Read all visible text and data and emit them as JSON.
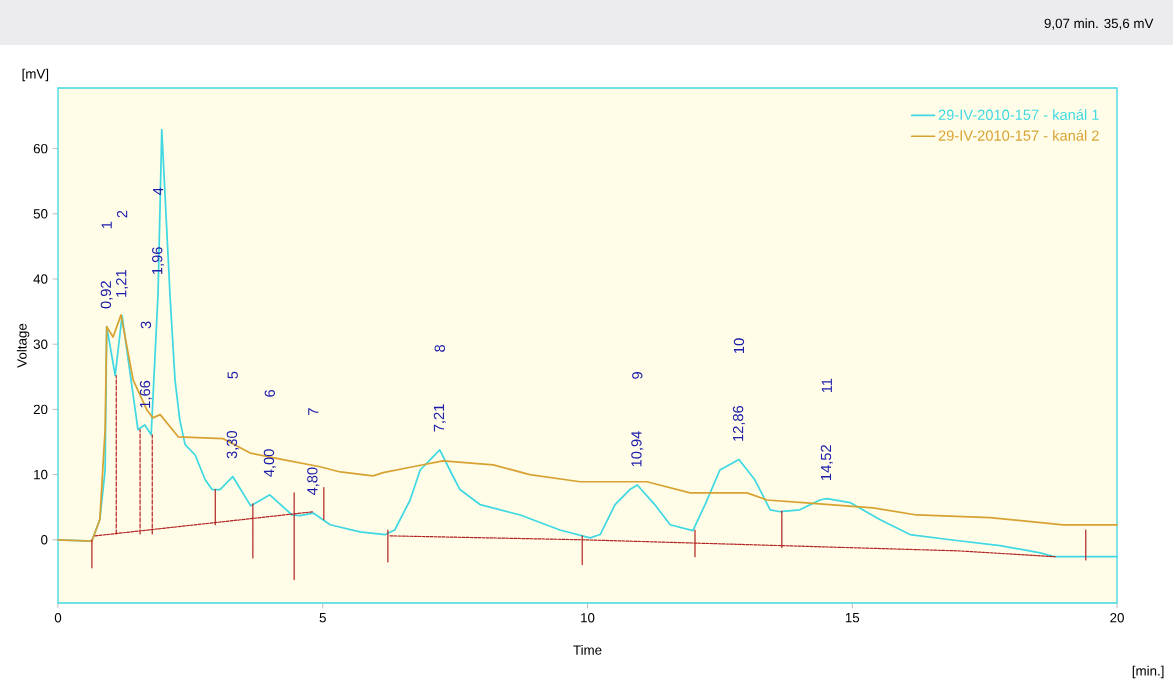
{
  "chart_data": {
    "type": "line",
    "xlabel": "Time",
    "ylabel": "Voltage",
    "xlim": [
      0,
      20
    ],
    "ylim": [
      -9.7,
      69.3
    ],
    "xticks": [
      0,
      5,
      10,
      15,
      20
    ],
    "yticks": [
      0,
      10,
      20,
      30,
      40,
      50,
      60
    ],
    "grid": false,
    "legend": "top right",
    "marker": "none",
    "series": [
      {
        "name": "29-IV-2010-157 - kanál 1",
        "color": "#3fd8e2",
        "line_style": "solid",
        "x": [
          0,
          0.64,
          0.79,
          0.89,
          0.92,
          1.08,
          1.21,
          1.51,
          1.64,
          1.76,
          1.89,
          1.96,
          2.12,
          2.21,
          2.3,
          2.4,
          2.59,
          2.78,
          2.91,
          3.06,
          3.3,
          3.64,
          4.0,
          4.42,
          4.57,
          4.82,
          5.14,
          5.7,
          6.18,
          6.36,
          6.65,
          6.84,
          7.21,
          7.4,
          7.59,
          7.97,
          8.73,
          9.48,
          10.05,
          10.24,
          10.52,
          10.8,
          10.94,
          11.27,
          11.56,
          11.99,
          12.22,
          12.5,
          12.86,
          13.16,
          13.45,
          13.64,
          14.01,
          14.39,
          14.52,
          14.96,
          15.52,
          16.09,
          16.85,
          17.79,
          18.55,
          18.83,
          20
        ],
        "values": [
          0,
          -0.2,
          3.1,
          10.7,
          32.7,
          25.2,
          34.4,
          16.9,
          17.6,
          16.1,
          37.9,
          62.9,
          36.8,
          24.5,
          18.4,
          14.6,
          13.0,
          9.2,
          7.7,
          7.7,
          9.7,
          5.2,
          6.9,
          3.8,
          3.7,
          4.1,
          2.3,
          1.2,
          0.8,
          1.5,
          6.1,
          10.7,
          13.8,
          10.7,
          7.7,
          5.4,
          3.8,
          1.5,
          0.3,
          0.8,
          5.4,
          7.7,
          8.4,
          5.4,
          2.3,
          1.4,
          5.4,
          10.7,
          12.3,
          9.2,
          4.6,
          4.3,
          4.6,
          6.1,
          6.3,
          5.7,
          3.1,
          0.8,
          0,
          -0.9,
          -2.0,
          -2.6,
          -2.6
        ]
      },
      {
        "name": "29-IV-2010-157 - kanál 2",
        "color": "#d8a232",
        "line_style": "solid",
        "x": [
          0,
          0.64,
          0.79,
          0.89,
          0.92,
          1.04,
          1.19,
          1.42,
          1.68,
          1.79,
          1.93,
          2.27,
          3.12,
          3.63,
          4.25,
          4.95,
          5.33,
          5.95,
          6.14,
          6.7,
          7.27,
          8.22,
          8.91,
          9.86,
          11.12,
          11.94,
          13.01,
          13.39,
          14.07,
          15.39,
          16.22,
          17.6,
          18.98,
          20
        ],
        "values": [
          0,
          -0.2,
          3.1,
          16.9,
          32.7,
          31.1,
          34.5,
          24.5,
          19.9,
          18.7,
          19.2,
          15.8,
          15.5,
          13.3,
          12.3,
          11.2,
          10.4,
          9.8,
          10.3,
          11.2,
          12.1,
          11.5,
          10.0,
          8.9,
          8.9,
          7.2,
          7.2,
          6.1,
          5.7,
          4.9,
          3.8,
          3.4,
          2.3,
          2.3
        ]
      },
      {
        "type": "line",
        "color": "#b22222",
        "line_style": "dotted",
        "x": [
          0.7,
          4.82,
          null,
          6.27,
          9.9,
          13.67,
          17.0,
          18.83
        ],
        "values": [
          0.6,
          4.3,
          null,
          0.6,
          0,
          -0.9,
          -1.7,
          -2.6
        ]
      },
      {
        "type": "line",
        "color": "#b22222",
        "line_style": "dashed",
        "x": [
          1.1,
          1.1,
          null,
          1.55,
          1.55,
          null,
          1.78,
          1.78
        ],
        "values": [
          0.9,
          25.2,
          null,
          0.9,
          16.9,
          null,
          0.9,
          16.1
        ]
      },
      {
        "type": "line",
        "color": "#b22222",
        "line_style": "solid",
        "x": [
          0.64,
          0.64,
          null,
          2.97,
          2.97,
          null,
          3.68,
          3.68,
          null,
          4.46,
          4.46,
          null,
          5.02,
          5.02,
          null,
          6.23,
          6.23,
          null,
          9.9,
          9.9,
          null,
          12.03,
          12.03,
          null,
          13.67,
          13.67,
          null,
          19.41,
          19.41
        ],
        "values": [
          0,
          -4.3,
          null,
          7.7,
          2.3,
          null,
          5.5,
          -2.8,
          null,
          7.2,
          -6.1,
          null,
          8.0,
          3.1,
          null,
          1.5,
          -3.4,
          null,
          0.6,
          -3.8,
          null,
          1.5,
          -2.6,
          null,
          4.4,
          -1.2,
          null,
          1.5,
          -3.1
        ]
      }
    ],
    "annotations": [
      "[mV]",
      "[min.]",
      "9,07 min.  35,6 mV",
      {
        "text": "0,92",
        "x": 0.92,
        "y": 32.7
      },
      "1",
      {
        "text": "1,21",
        "x": 1.21,
        "y": 34.4
      },
      "2",
      {
        "text": "1,66",
        "x": 1.66,
        "y": 17.4
      },
      "3",
      {
        "text": "1,96",
        "x": 1.89,
        "y": 37.9
      },
      "4",
      {
        "text": "3,30",
        "x": 3.3,
        "y": 9.7
      },
      "5",
      {
        "text": "4,00",
        "x": 4.0,
        "y": 6.9
      },
      "6",
      {
        "text": "4,80",
        "x": 4.82,
        "y": 4.1
      },
      "7",
      {
        "text": "7,21",
        "x": 7.21,
        "y": 13.8
      },
      "8",
      {
        "text": "10,94",
        "x": 10.94,
        "y": 8.4
      },
      "9",
      {
        "text": "12,86",
        "x": 12.86,
        "y": 12.3
      },
      "10",
      {
        "text": "14,52",
        "x": 14.52,
        "y": 6.3
      },
      "11"
    ]
  }
}
